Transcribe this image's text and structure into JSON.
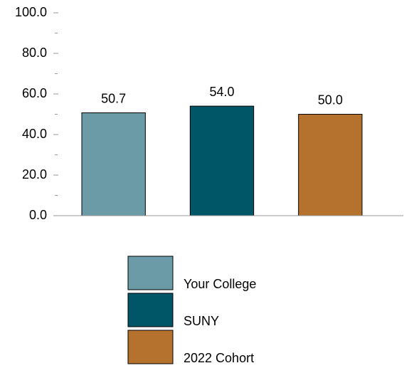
{
  "chart_data": {
    "type": "bar",
    "categories": [
      null
    ],
    "series": [
      {
        "name": "Your College",
        "color": "#6a9ba6",
        "values": [
          50.7
        ],
        "value_labels": [
          "50.7"
        ]
      },
      {
        "name": "SUNY",
        "color": "#005566",
        "values": [
          54.0
        ],
        "value_labels": [
          "54.0"
        ]
      },
      {
        "name": "2022 Cohort",
        "color": "#b5722e",
        "values": [
          50.0
        ],
        "value_labels": [
          "50.0"
        ]
      }
    ],
    "ylim": [
      0,
      100
    ],
    "yticks": [
      {
        "value": 0,
        "label": "0.0"
      },
      {
        "value": 20,
        "label": "20.0"
      },
      {
        "value": 40,
        "label": "40.0"
      },
      {
        "value": 60,
        "label": "60.0"
      },
      {
        "value": 80,
        "label": "80.0"
      },
      {
        "value": 100,
        "label": "100.0"
      }
    ],
    "yminor_ticks": [
      10,
      30,
      50,
      70,
      90
    ],
    "legend": "bottom"
  }
}
